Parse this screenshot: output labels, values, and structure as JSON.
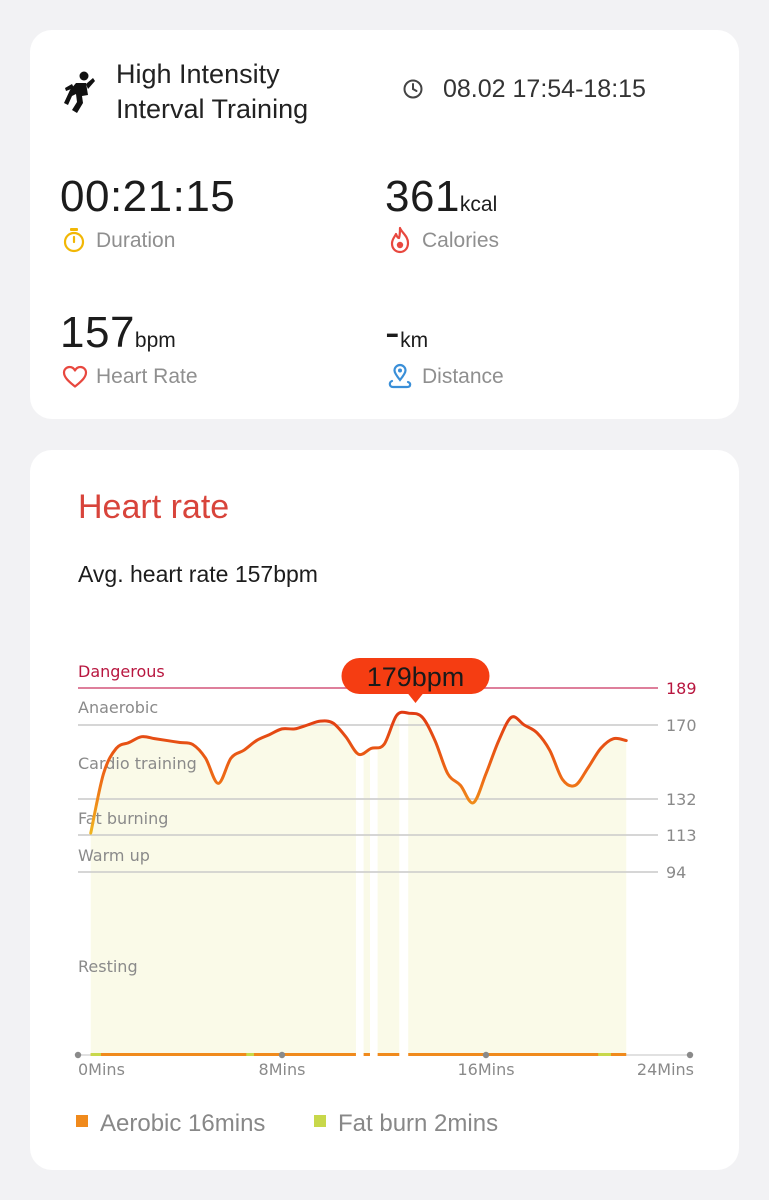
{
  "workout": {
    "title_line1": "High Intensity",
    "title_line2": "Interval Training",
    "time_range": "08.02 17:54-18:15"
  },
  "stats": {
    "duration": {
      "value": "00:21:15",
      "unit": "",
      "label": "Duration",
      "icon": "stopwatch-icon",
      "color": "#f2b705"
    },
    "calories": {
      "value": "361",
      "unit": "kcal",
      "label": "Calories",
      "icon": "flame-icon",
      "color": "#e8483f"
    },
    "heart_rate": {
      "value": "157",
      "unit": "bpm",
      "label": "Heart Rate",
      "icon": "heart-icon",
      "color": "#e8483f"
    },
    "distance": {
      "value": "-",
      "unit": "km",
      "label": "Distance",
      "icon": "location-pin-icon",
      "color": "#3a8fd8"
    }
  },
  "heart_rate_section": {
    "title": "Heart rate",
    "average": "Avg. heart rate 157bpm",
    "max_label": "179bpm"
  },
  "legend": {
    "aerobic": "Aerobic 16mins",
    "fat_burn": "Fat burn 2mins",
    "aerobic_color": "#f08a1c",
    "fat_burn_color": "#c8d84a"
  },
  "chart_data": {
    "type": "line",
    "title": "",
    "xlabel": "",
    "ylabel": "",
    "x_unit": "mins",
    "xlim": [
      0,
      24
    ],
    "x_ticks": [
      0,
      8,
      16,
      24
    ],
    "x_tick_labels": [
      "0Mins",
      "8Mins",
      "16Mins",
      "24Mins"
    ],
    "ylim": [
      55,
      200
    ],
    "y_ticks": [
      94,
      113,
      132,
      170,
      189
    ],
    "y_tick_labels": [
      "94",
      "113",
      "132",
      "170",
      "189"
    ],
    "zones": [
      {
        "name": "Dangerous",
        "min": 189
      },
      {
        "name": "Anaerobic",
        "min": 170
      },
      {
        "name": "Cardio training",
        "min": 132
      },
      {
        "name": "Fat burning",
        "min": 113
      },
      {
        "name": "Warm up",
        "min": 94
      },
      {
        "name": "Resting",
        "min": 0
      }
    ],
    "max_marker": {
      "x": 13.0,
      "y": 179,
      "label": "179bpm"
    },
    "series": [
      {
        "x": [
          0.5,
          1.0,
          1.5,
          2.0,
          2.5,
          3.0,
          3.5,
          4.0,
          4.5,
          5.0,
          5.5,
          6.0,
          6.5,
          7.0,
          7.5,
          8.0,
          8.5,
          9.0,
          9.5,
          10.0,
          10.5,
          11.0,
          11.5,
          12.0,
          12.5,
          13.0,
          13.5,
          14.0,
          14.5,
          15.0,
          15.5,
          16.0,
          16.5,
          17.0,
          17.5,
          18.0,
          18.5,
          19.0,
          19.5,
          20.0,
          20.5,
          21.0,
          21.5
        ],
        "y": [
          114,
          145,
          158,
          161,
          164,
          163,
          162,
          161,
          160,
          153,
          140,
          153,
          157,
          162,
          165,
          168,
          168,
          170,
          172,
          171,
          164,
          155,
          158,
          160,
          175,
          176,
          174,
          162,
          145,
          139,
          130,
          145,
          162,
          174,
          170,
          166,
          157,
          142,
          139,
          148,
          158,
          163,
          162
        ]
      }
    ],
    "grid": true
  }
}
